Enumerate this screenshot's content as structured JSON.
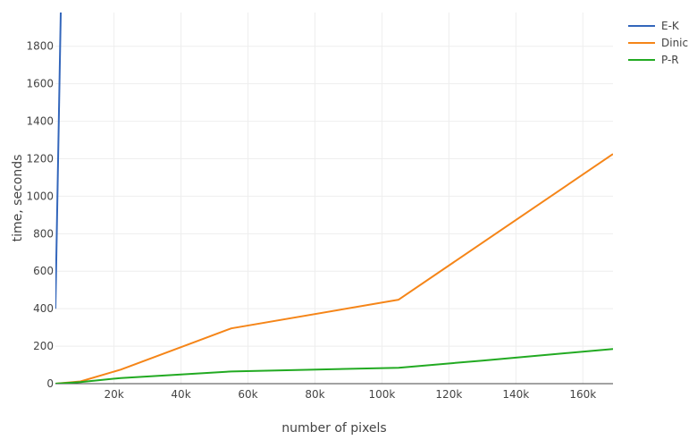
{
  "chart_data": {
    "type": "line",
    "xlabel": "number of pixels",
    "ylabel": "time, seconds",
    "xlim": [
      2500,
      169000
    ],
    "ylim": [
      0,
      1980
    ],
    "x_ticks": [
      20000,
      40000,
      60000,
      80000,
      100000,
      120000,
      140000,
      160000
    ],
    "x_tick_labels": [
      "20k",
      "40k",
      "60k",
      "80k",
      "100k",
      "120k",
      "140k",
      "160k"
    ],
    "y_ticks": [
      0,
      200,
      400,
      600,
      800,
      1000,
      1200,
      1400,
      1600,
      1800
    ],
    "y_tick_labels": [
      "0",
      "200",
      "400",
      "600",
      "800",
      "1000",
      "1200",
      "1400",
      "1600",
      "1800"
    ],
    "grid": true,
    "legend_position": "top-right",
    "series": [
      {
        "name": "E-K",
        "color": "#3366bb",
        "x": [
          2500,
          4100
        ],
        "y": [
          400,
          1980
        ]
      },
      {
        "name": "Dinic",
        "color": "#f58518",
        "x": [
          2500,
          10000,
          22000,
          55000,
          105000,
          169000
        ],
        "y": [
          0,
          12,
          75,
          295,
          448,
          1225
        ]
      },
      {
        "name": "P-R",
        "color": "#22aa22",
        "x": [
          2500,
          10000,
          22000,
          55000,
          105000,
          130000,
          169000
        ],
        "y": [
          0,
          8,
          30,
          65,
          85,
          123,
          185
        ]
      }
    ]
  }
}
